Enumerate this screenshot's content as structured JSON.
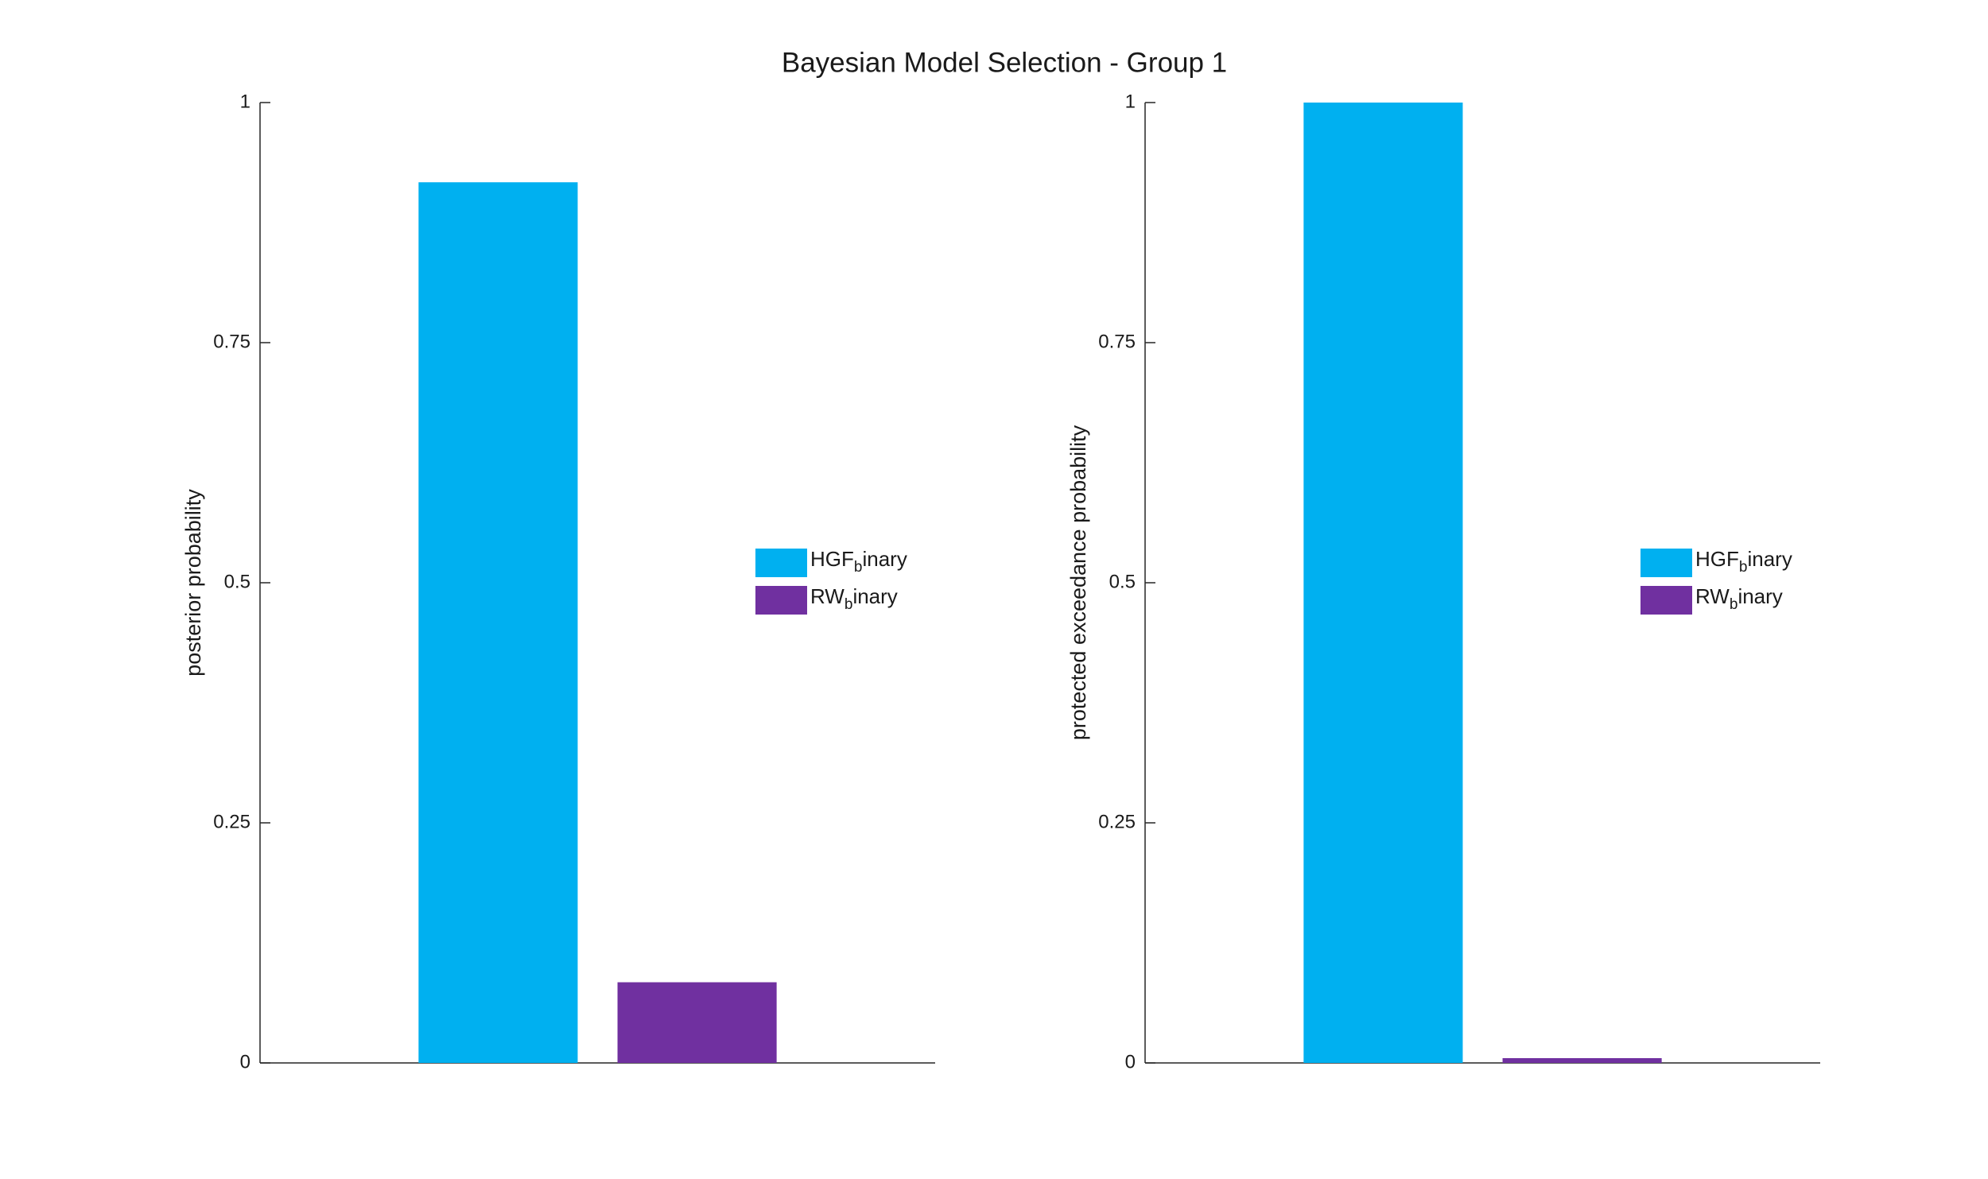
{
  "title": "Bayesian Model Selection - Group 1",
  "chart_data": [
    {
      "type": "bar",
      "ylabel": "posterior probability",
      "ylim": [
        0,
        1
      ],
      "yticks": [
        0,
        0.25,
        0.5,
        0.75,
        1
      ],
      "series": [
        {
          "name": "HGF_binary",
          "color": "#00b0f0",
          "values": [
            0.917
          ]
        },
        {
          "name": "RW_binary",
          "color": "#7030a0",
          "values": [
            0.084
          ]
        }
      ]
    },
    {
      "type": "bar",
      "ylabel": "protected exceedance probability",
      "ylim": [
        0,
        1
      ],
      "yticks": [
        0,
        0.25,
        0.5,
        0.75,
        1
      ],
      "series": [
        {
          "name": "HGF_binary",
          "color": "#00b0f0",
          "values": [
            1
          ]
        },
        {
          "name": "RW_binary",
          "color": "#7030a0",
          "values": [
            0.005
          ]
        }
      ]
    }
  ]
}
